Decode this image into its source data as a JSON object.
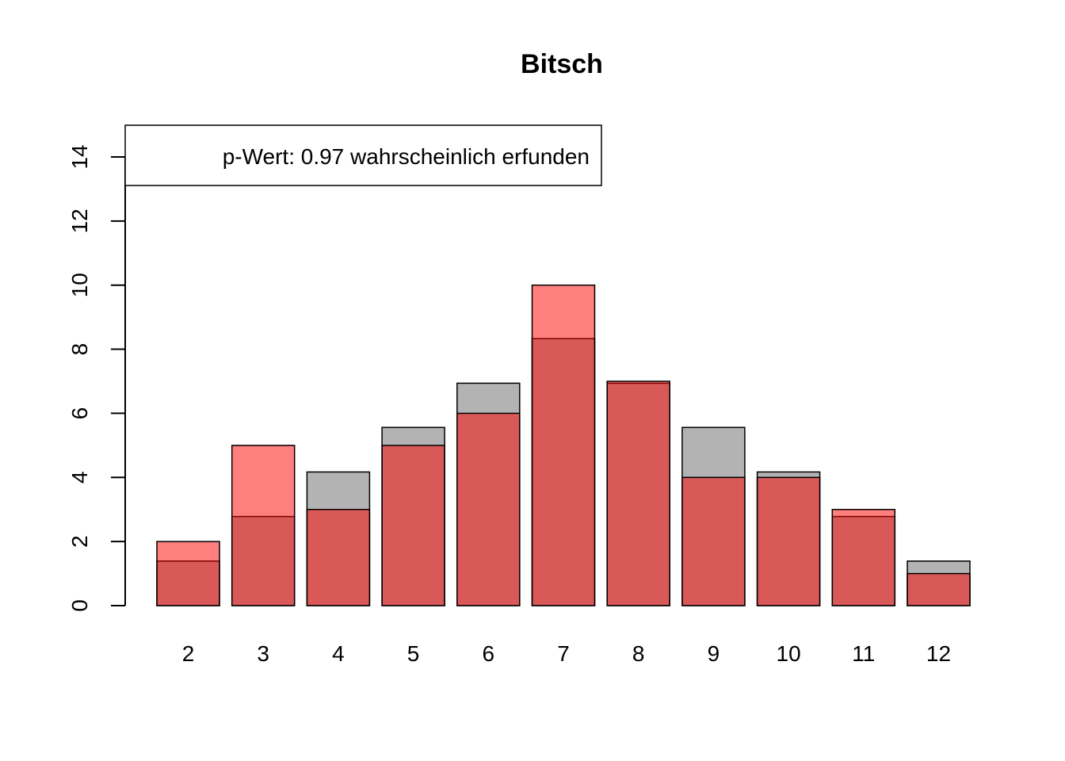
{
  "chart_data": {
    "type": "bar",
    "title": "Bitsch",
    "xlabel": "",
    "ylabel": "",
    "categories": [
      "2",
      "3",
      "4",
      "5",
      "6",
      "7",
      "8",
      "9",
      "10",
      "11",
      "12"
    ],
    "series": [
      {
        "values": [
          1.39,
          2.78,
          4.17,
          5.56,
          6.94,
          8.33,
          6.94,
          5.56,
          4.17,
          2.78,
          1.39
        ]
      },
      {
        "values": [
          2,
          5,
          3,
          5,
          6,
          10,
          7,
          4,
          4,
          3,
          1
        ]
      }
    ],
    "ylim": [
      0,
      14
    ],
    "yticks": [
      "0",
      "2",
      "4",
      "6",
      "8",
      "10",
      "12",
      "14"
    ],
    "grid": false,
    "legend": {
      "text": "p-Wert: 0.97 wahrscheinlich erfunden",
      "position": "top-left"
    },
    "colors": {
      "expected": "#b3b3b3",
      "observed": "#ff0000",
      "observed_opacity": 0.5,
      "border": "#000000"
    }
  }
}
